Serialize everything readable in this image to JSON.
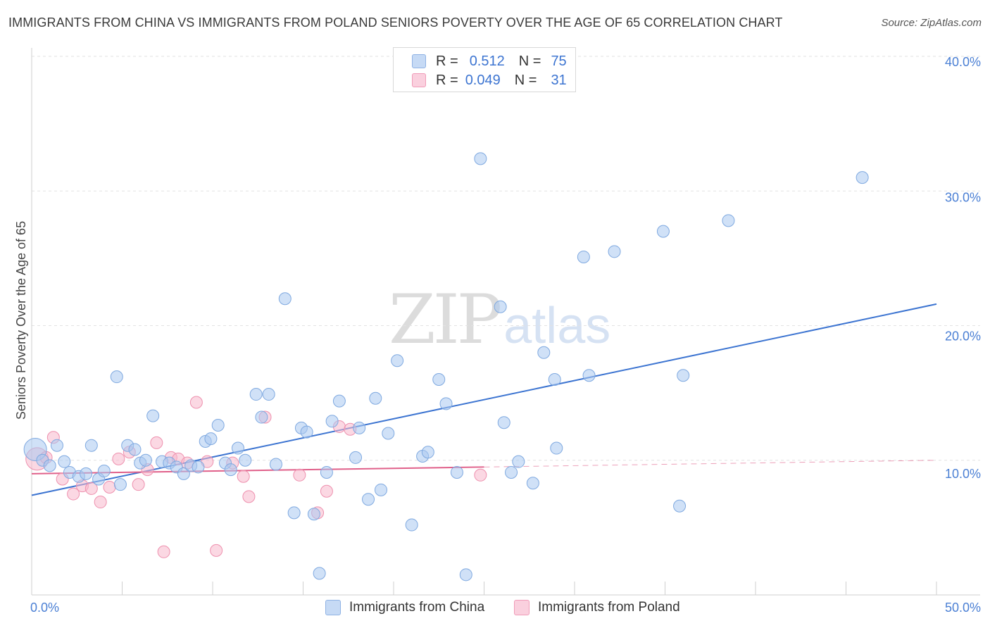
{
  "title": "IMMIGRANTS FROM CHINA VS IMMIGRANTS FROM POLAND SENIORS POVERTY OVER THE AGE OF 65 CORRELATION CHART",
  "source": "Source: ZipAtlas.com",
  "watermark": {
    "zip": "ZIP",
    "atlas": "atlas"
  },
  "legend": {
    "rows": [
      {
        "r_label": "R =",
        "r_value": "0.512",
        "n_label": "N =",
        "n_value": "75",
        "color": "#aac8f0"
      },
      {
        "r_label": "R =",
        "r_value": "0.049",
        "n_label": "N =",
        "n_value": "31",
        "color": "#f7b8cc"
      }
    ]
  },
  "bottom_legend": [
    {
      "label": "Immigrants from China",
      "color": "#aac8f0"
    },
    {
      "label": "Immigrants from Poland",
      "color": "#f7b8cc"
    }
  ],
  "chart_data": {
    "type": "scatter",
    "title": "IMMIGRANTS FROM CHINA VS IMMIGRANTS FROM POLAND SENIORS POVERTY OVER THE AGE OF 65 CORRELATION CHART",
    "xlabel": "",
    "ylabel": "Seniors Poverty Over the Age of 65",
    "xlim": [
      0,
      50
    ],
    "ylim": [
      0,
      40
    ],
    "x_tick_labels": [
      {
        "value": 0,
        "label": "0.0%"
      },
      {
        "value": 50,
        "label": "50.0%"
      }
    ],
    "y_tick_labels": [
      {
        "value": 10,
        "label": "10.0%"
      },
      {
        "value": 20,
        "label": "20.0%"
      },
      {
        "value": 30,
        "label": "30.0%"
      },
      {
        "value": 40,
        "label": "40.0%"
      }
    ],
    "series": [
      {
        "name": "Immigrants from China",
        "color": "#aac8f0",
        "stroke": "#7fa9e0",
        "line_color": "#3c74d1",
        "trend": {
          "x": [
            0,
            50
          ],
          "y": [
            7.4,
            21.6
          ],
          "dashed_from": null
        },
        "points": [
          {
            "x": 0.2,
            "y": 10.8,
            "big": true
          },
          {
            "x": 0.6,
            "y": 10.0
          },
          {
            "x": 1.0,
            "y": 9.6
          },
          {
            "x": 1.4,
            "y": 11.1
          },
          {
            "x": 1.8,
            "y": 9.9
          },
          {
            "x": 2.1,
            "y": 9.1
          },
          {
            "x": 2.6,
            "y": 8.8
          },
          {
            "x": 3.0,
            "y": 9.0
          },
          {
            "x": 3.3,
            "y": 11.1
          },
          {
            "x": 3.7,
            "y": 8.6
          },
          {
            "x": 4.0,
            "y": 9.2
          },
          {
            "x": 4.7,
            "y": 16.2
          },
          {
            "x": 4.9,
            "y": 8.2
          },
          {
            "x": 5.3,
            "y": 11.1
          },
          {
            "x": 5.7,
            "y": 10.8
          },
          {
            "x": 6.0,
            "y": 9.8
          },
          {
            "x": 6.3,
            "y": 10.0
          },
          {
            "x": 6.7,
            "y": 13.3
          },
          {
            "x": 7.2,
            "y": 9.9
          },
          {
            "x": 7.6,
            "y": 9.8
          },
          {
            "x": 8.0,
            "y": 9.5
          },
          {
            "x": 8.4,
            "y": 9.0
          },
          {
            "x": 8.8,
            "y": 9.6
          },
          {
            "x": 9.2,
            "y": 9.5
          },
          {
            "x": 9.6,
            "y": 11.4
          },
          {
            "x": 9.9,
            "y": 11.6
          },
          {
            "x": 10.3,
            "y": 12.6
          },
          {
            "x": 10.7,
            "y": 9.8
          },
          {
            "x": 11.0,
            "y": 9.3
          },
          {
            "x": 11.4,
            "y": 10.9
          },
          {
            "x": 11.8,
            "y": 10.0
          },
          {
            "x": 12.4,
            "y": 14.9
          },
          {
            "x": 12.7,
            "y": 13.2
          },
          {
            "x": 13.1,
            "y": 14.9
          },
          {
            "x": 13.5,
            "y": 9.7
          },
          {
            "x": 14.0,
            "y": 22.0
          },
          {
            "x": 14.5,
            "y": 6.1
          },
          {
            "x": 14.9,
            "y": 12.4
          },
          {
            "x": 15.2,
            "y": 12.1
          },
          {
            "x": 15.6,
            "y": 6.0
          },
          {
            "x": 15.9,
            "y": 1.6
          },
          {
            "x": 16.3,
            "y": 9.1
          },
          {
            "x": 16.6,
            "y": 12.9
          },
          {
            "x": 17.0,
            "y": 14.4
          },
          {
            "x": 17.9,
            "y": 10.2
          },
          {
            "x": 18.1,
            "y": 12.4
          },
          {
            "x": 18.6,
            "y": 7.1
          },
          {
            "x": 19.0,
            "y": 14.6
          },
          {
            "x": 19.3,
            "y": 7.8
          },
          {
            "x": 19.7,
            "y": 12.0
          },
          {
            "x": 20.2,
            "y": 17.4
          },
          {
            "x": 21.0,
            "y": 5.2
          },
          {
            "x": 21.6,
            "y": 10.3
          },
          {
            "x": 21.9,
            "y": 10.6
          },
          {
            "x": 22.5,
            "y": 16.0
          },
          {
            "x": 22.9,
            "y": 14.2
          },
          {
            "x": 23.5,
            "y": 9.1
          },
          {
            "x": 24.0,
            "y": 1.5
          },
          {
            "x": 24.8,
            "y": 32.4
          },
          {
            "x": 25.9,
            "y": 21.4
          },
          {
            "x": 26.1,
            "y": 12.8
          },
          {
            "x": 26.5,
            "y": 9.1
          },
          {
            "x": 26.9,
            "y": 9.9
          },
          {
            "x": 27.7,
            "y": 8.3
          },
          {
            "x": 28.3,
            "y": 18.0
          },
          {
            "x": 28.9,
            "y": 16.0
          },
          {
            "x": 29.0,
            "y": 10.9
          },
          {
            "x": 30.5,
            "y": 25.1
          },
          {
            "x": 30.8,
            "y": 16.3
          },
          {
            "x": 32.2,
            "y": 25.5
          },
          {
            "x": 34.9,
            "y": 27.0
          },
          {
            "x": 35.8,
            "y": 6.6
          },
          {
            "x": 36.0,
            "y": 16.3
          },
          {
            "x": 38.5,
            "y": 27.8
          },
          {
            "x": 45.9,
            "y": 31.0
          }
        ]
      },
      {
        "name": "Immigrants from Poland",
        "color": "#f7b8cc",
        "stroke": "#ee90ae",
        "line_color": "#e0608a",
        "trend": {
          "x": [
            0,
            50
          ],
          "y": [
            9.0,
            10.0
          ],
          "solid_until": 25
        },
        "points": [
          {
            "x": 0.3,
            "y": 10.1,
            "big": true
          },
          {
            "x": 0.8,
            "y": 10.2
          },
          {
            "x": 1.2,
            "y": 11.7
          },
          {
            "x": 1.7,
            "y": 8.6
          },
          {
            "x": 2.3,
            "y": 7.5
          },
          {
            "x": 2.8,
            "y": 8.1
          },
          {
            "x": 3.3,
            "y": 7.9
          },
          {
            "x": 3.8,
            "y": 6.9
          },
          {
            "x": 4.3,
            "y": 8.0
          },
          {
            "x": 4.8,
            "y": 10.1
          },
          {
            "x": 5.4,
            "y": 10.6
          },
          {
            "x": 5.9,
            "y": 8.2
          },
          {
            "x": 6.4,
            "y": 9.3
          },
          {
            "x": 6.9,
            "y": 11.3
          },
          {
            "x": 7.3,
            "y": 3.2
          },
          {
            "x": 7.7,
            "y": 10.2
          },
          {
            "x": 8.1,
            "y": 10.1
          },
          {
            "x": 8.6,
            "y": 9.8
          },
          {
            "x": 9.1,
            "y": 14.3
          },
          {
            "x": 9.7,
            "y": 9.9
          },
          {
            "x": 10.2,
            "y": 3.3
          },
          {
            "x": 11.1,
            "y": 9.8
          },
          {
            "x": 11.7,
            "y": 8.8
          },
          {
            "x": 12.0,
            "y": 7.3
          },
          {
            "x": 12.9,
            "y": 13.2
          },
          {
            "x": 14.8,
            "y": 8.9
          },
          {
            "x": 15.8,
            "y": 6.1
          },
          {
            "x": 16.3,
            "y": 7.7
          },
          {
            "x": 17.0,
            "y": 12.5
          },
          {
            "x": 17.6,
            "y": 12.3
          },
          {
            "x": 24.8,
            "y": 8.9
          }
        ]
      }
    ]
  }
}
